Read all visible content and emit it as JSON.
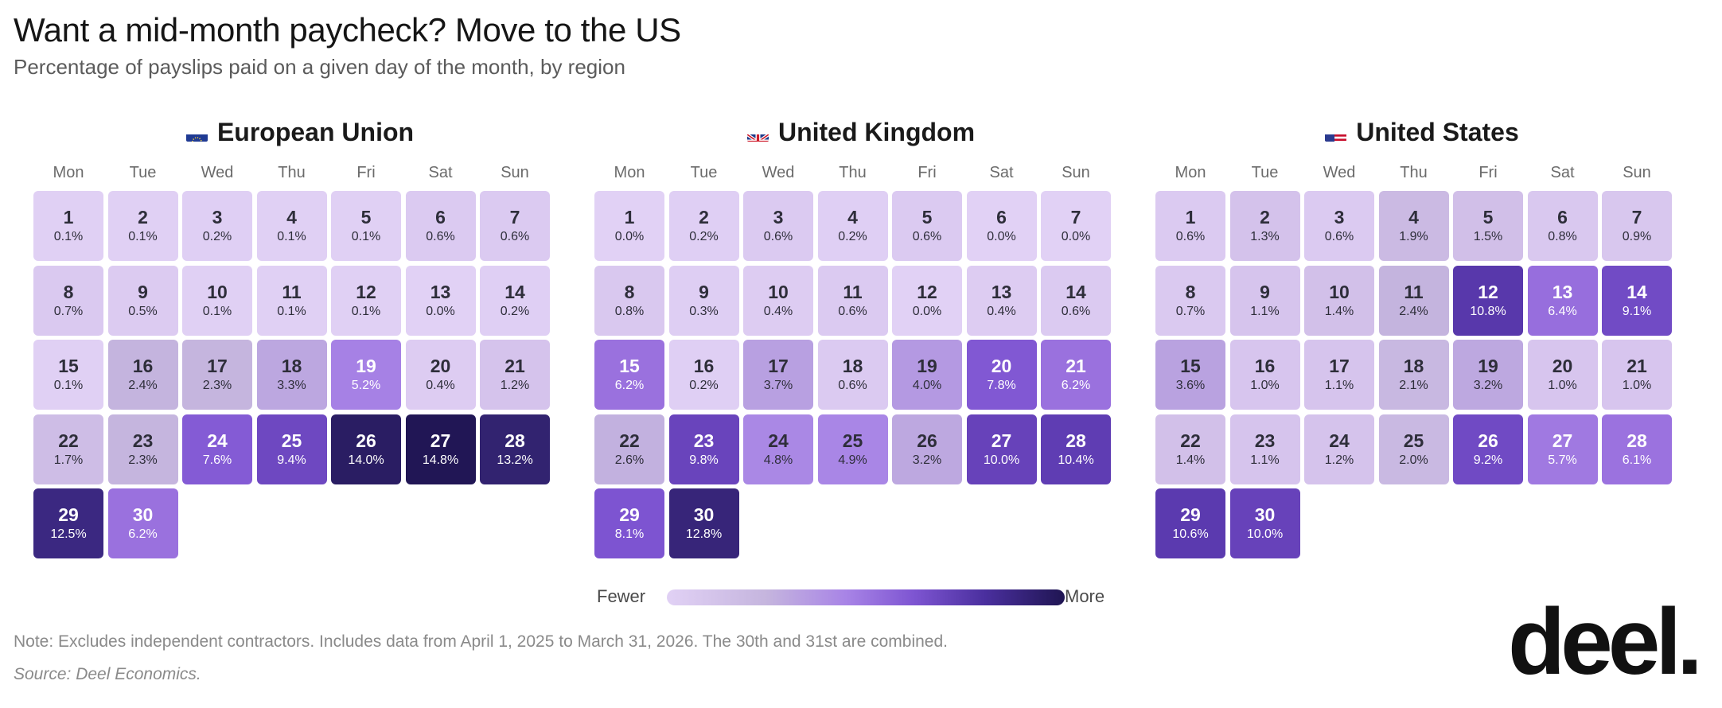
{
  "title": "Want a mid-month paycheck? Move to the US",
  "subtitle": "Percentage of payslips paid on a given day of the month, by region",
  "weekdays": [
    "Mon",
    "Tue",
    "Wed",
    "Thu",
    "Fri",
    "Sat",
    "Sun"
  ],
  "legend": {
    "low": "Fewer",
    "high": "More"
  },
  "note": "Note: Excludes independent contractors. Includes data from April 1, 2025 to March 31, 2026. The 30th and 31st are combined.",
  "source": "Source: Deel Economics.",
  "logo": "deel.",
  "chart_data": [
    {
      "type": "heatmap",
      "title": "European Union",
      "flag_icon": "eu-flag-icon",
      "days": [
        1,
        2,
        3,
        4,
        5,
        6,
        7,
        8,
        9,
        10,
        11,
        12,
        13,
        14,
        15,
        16,
        17,
        18,
        19,
        20,
        21,
        22,
        23,
        24,
        25,
        26,
        27,
        28,
        29,
        30
      ],
      "values": [
        0.1,
        0.1,
        0.2,
        0.1,
        0.1,
        0.6,
        0.6,
        0.7,
        0.5,
        0.1,
        0.1,
        0.1,
        0.0,
        0.2,
        0.1,
        2.4,
        2.3,
        3.3,
        5.2,
        0.4,
        1.2,
        1.7,
        2.3,
        7.6,
        9.4,
        14.0,
        14.8,
        13.2,
        12.5,
        6.2
      ],
      "unit": "%"
    },
    {
      "type": "heatmap",
      "title": "United Kingdom",
      "flag_icon": "uk-flag-icon",
      "days": [
        1,
        2,
        3,
        4,
        5,
        6,
        7,
        8,
        9,
        10,
        11,
        12,
        13,
        14,
        15,
        16,
        17,
        18,
        19,
        20,
        21,
        22,
        23,
        24,
        25,
        26,
        27,
        28,
        29,
        30
      ],
      "values": [
        0.0,
        0.2,
        0.6,
        0.2,
        0.6,
        0.0,
        0.0,
        0.8,
        0.3,
        0.4,
        0.6,
        0.0,
        0.4,
        0.6,
        6.2,
        0.2,
        3.7,
        0.6,
        4.0,
        7.8,
        6.2,
        2.6,
        9.8,
        4.8,
        4.9,
        3.2,
        10.0,
        10.4,
        8.1,
        12.8
      ],
      "unit": "%"
    },
    {
      "type": "heatmap",
      "title": "United States",
      "flag_icon": "us-flag-icon",
      "days": [
        1,
        2,
        3,
        4,
        5,
        6,
        7,
        8,
        9,
        10,
        11,
        12,
        13,
        14,
        15,
        16,
        17,
        18,
        19,
        20,
        21,
        22,
        23,
        24,
        25,
        26,
        27,
        28,
        29,
        30
      ],
      "values": [
        0.6,
        1.3,
        0.6,
        1.9,
        1.5,
        0.8,
        0.9,
        0.7,
        1.1,
        1.4,
        2.4,
        10.8,
        6.4,
        9.1,
        3.6,
        1.0,
        1.1,
        2.1,
        3.2,
        1.0,
        1.0,
        1.4,
        1.1,
        1.2,
        2.0,
        9.2,
        5.7,
        6.1,
        10.6,
        10.0
      ],
      "unit": "%"
    }
  ]
}
